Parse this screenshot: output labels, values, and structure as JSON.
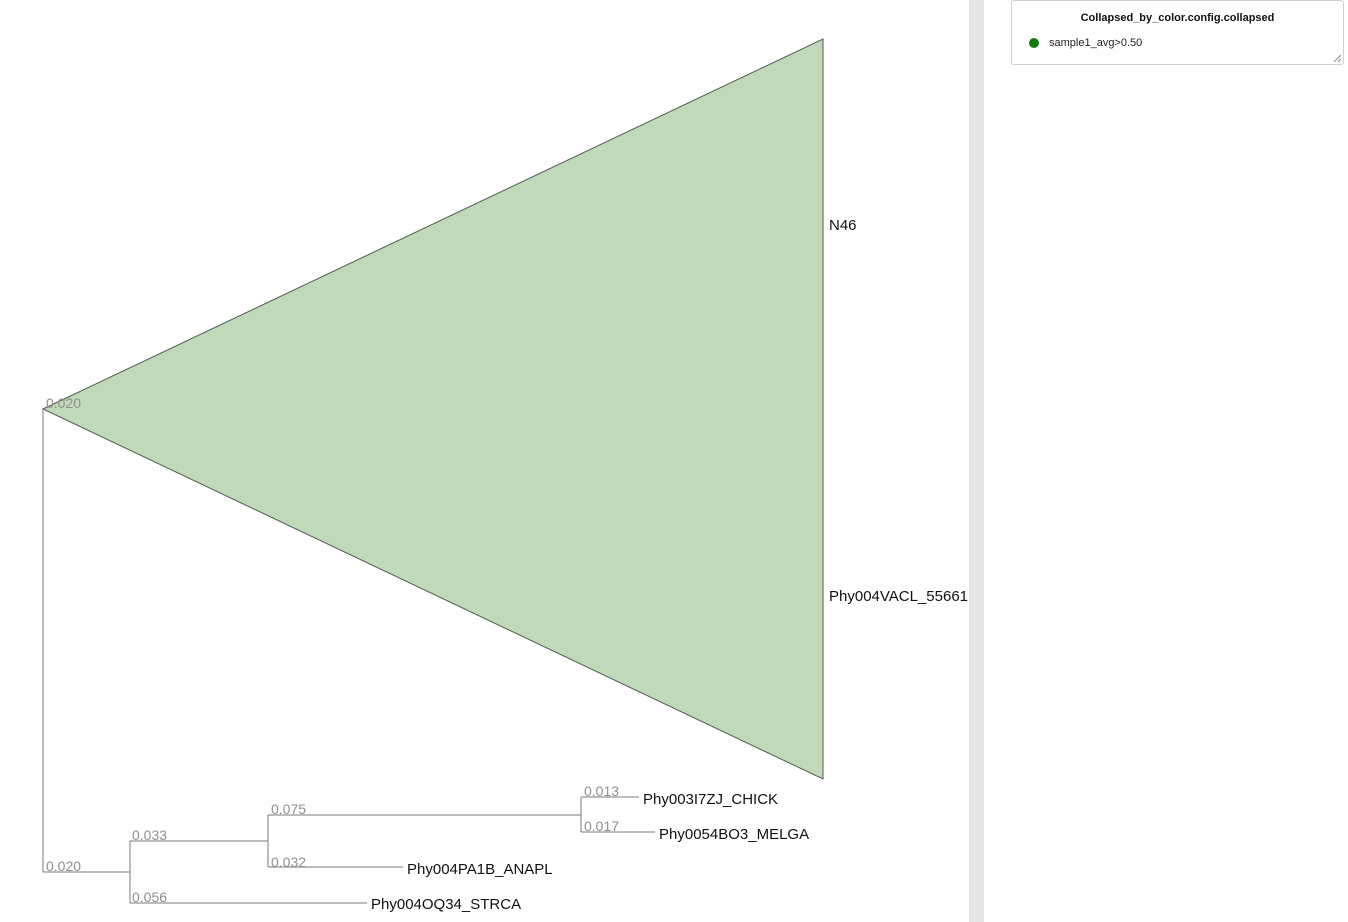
{
  "tree": {
    "colors": {
      "branch": "#7a7a7a",
      "collapsed_fill": "#c0d9b8",
      "support_text": "#8f8f8f"
    },
    "collapsed_clade": {
      "labels": [
        "N46",
        "Phy004VACL_55661"
      ],
      "support": "0.020"
    },
    "nodes": {
      "root": {
        "support": "0.020"
      },
      "internal_a": {
        "support": "0.033"
      },
      "internal_b": {
        "support": "0.075"
      },
      "internal_c": {
        "support": "0.032"
      },
      "internal_d": {
        "support": "0.056"
      }
    },
    "leaves": [
      {
        "id": "chick",
        "label": "Phy003I7ZJ_CHICK",
        "support": "0.013"
      },
      {
        "id": "melga",
        "label": "Phy0054BO3_MELGA",
        "support": "0.017"
      },
      {
        "id": "anapl",
        "label": "Phy004PA1B_ANAPL"
      },
      {
        "id": "strca",
        "label": "Phy004OQ34_STRCA"
      }
    ]
  },
  "legend": {
    "title": "Collapsed_by_color.config.collapsed",
    "entries": [
      {
        "label": "sample1_avg>0.50",
        "color": "#117a11"
      }
    ]
  }
}
